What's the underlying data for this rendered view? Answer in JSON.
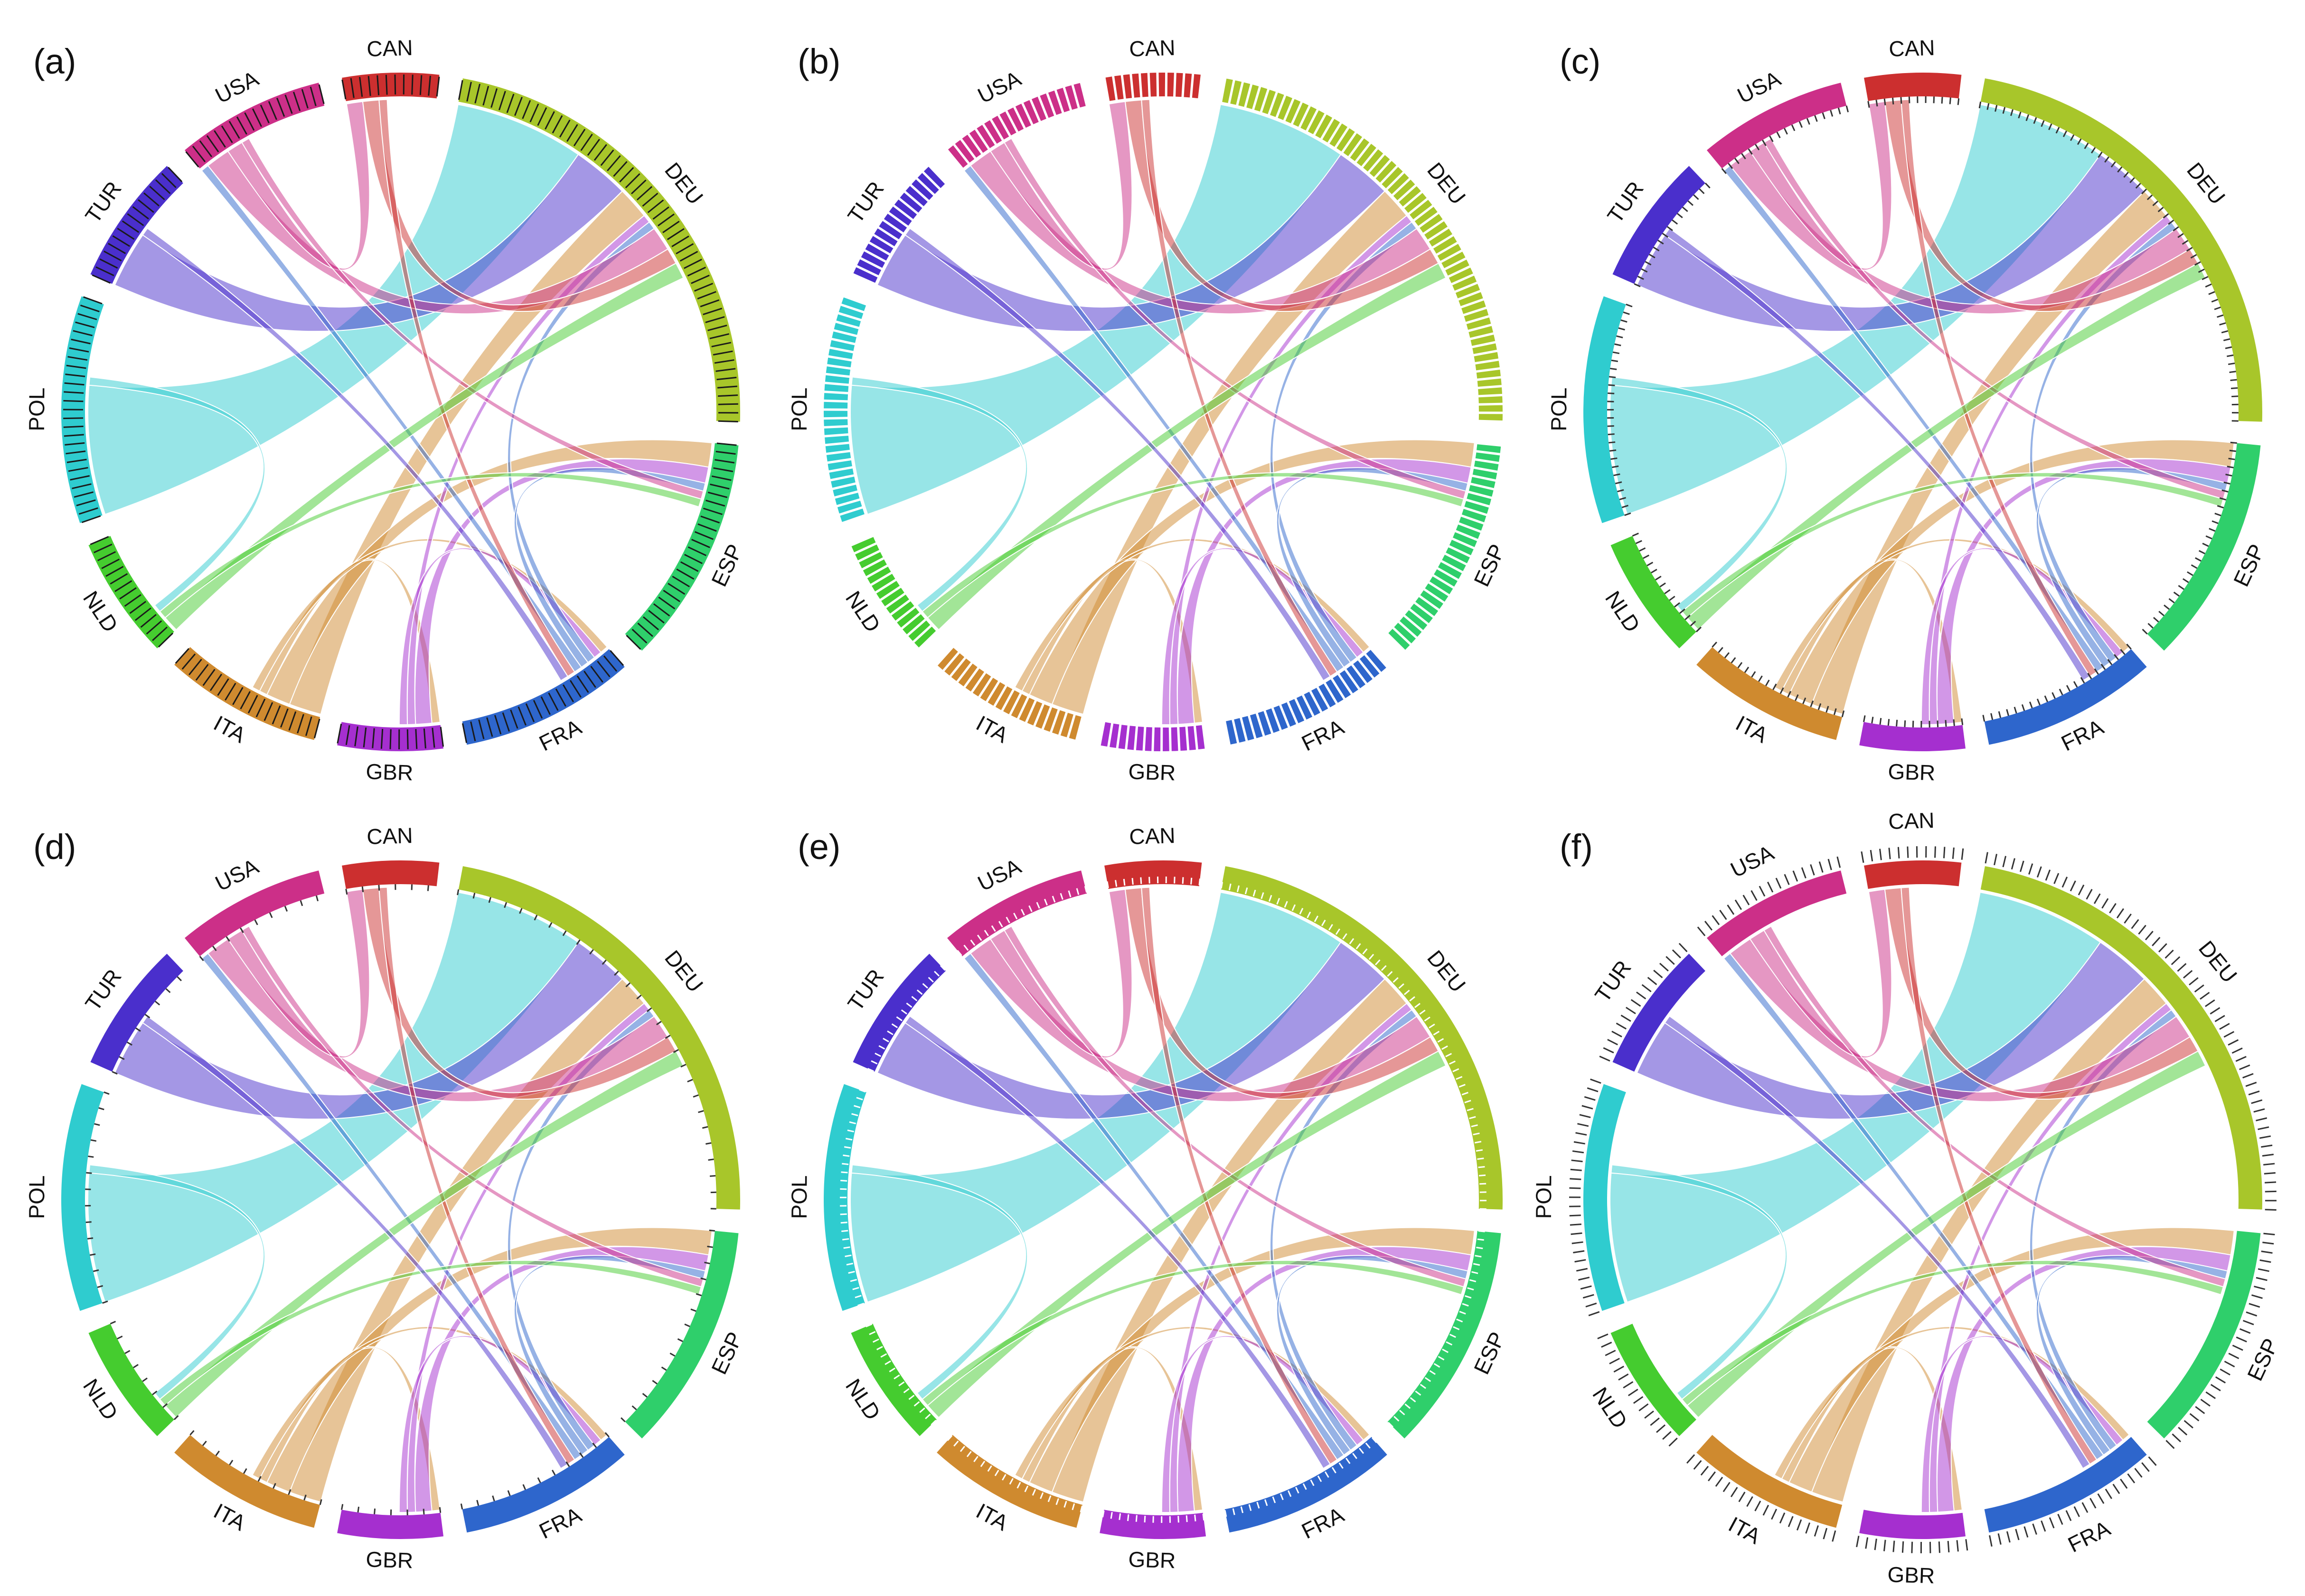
{
  "chart_data": {
    "type": "chord",
    "countries": [
      {
        "code": "CAN",
        "color": "#cc2f2f",
        "total": 11
      },
      {
        "code": "DEU",
        "color": "#a8c62a",
        "total": 54
      },
      {
        "code": "ESP",
        "color": "#2fcf6b",
        "total": 26
      },
      {
        "code": "FRA",
        "color": "#2e66cc",
        "total": 20
      },
      {
        "code": "GBR",
        "color": "#a52fcf",
        "total": 12
      },
      {
        "code": "ITA",
        "color": "#cf8a2f",
        "total": 18
      },
      {
        "code": "NLD",
        "color": "#45cc2f",
        "total": 14
      },
      {
        "code": "POL",
        "color": "#2fcccf",
        "total": 26
      },
      {
        "code": "TUR",
        "color": "#4a2fcc",
        "total": 15
      },
      {
        "code": "USA",
        "color": "#cc2f88",
        "total": 17
      }
    ],
    "flows": [
      {
        "from": "POL",
        "to": "DEU",
        "value": 16
      },
      {
        "from": "TUR",
        "to": "DEU",
        "value": 7
      },
      {
        "from": "ITA",
        "to": "DEU",
        "value": 4
      },
      {
        "from": "ITA",
        "to": "ESP",
        "value": 3
      },
      {
        "from": "ITA",
        "to": "GBR",
        "value": 1
      },
      {
        "from": "ITA",
        "to": "FRA",
        "value": 1
      },
      {
        "from": "GBR",
        "to": "ESP",
        "value": 2
      },
      {
        "from": "GBR",
        "to": "DEU",
        "value": 1
      },
      {
        "from": "GBR",
        "to": "FRA",
        "value": 1
      },
      {
        "from": "FRA",
        "to": "DEU",
        "value": 1
      },
      {
        "from": "FRA",
        "to": "ESP",
        "value": 1
      },
      {
        "from": "FRA",
        "to": "USA",
        "value": 1
      },
      {
        "from": "USA",
        "to": "DEU",
        "value": 3
      },
      {
        "from": "USA",
        "to": "CAN",
        "value": 2
      },
      {
        "from": "USA",
        "to": "ESP",
        "value": 1
      },
      {
        "from": "CAN",
        "to": "DEU",
        "value": 2
      },
      {
        "from": "CAN",
        "to": "FRA",
        "value": 1
      },
      {
        "from": "NLD",
        "to": "DEU",
        "value": 2
      },
      {
        "from": "NLD",
        "to": "ESP",
        "value": 1
      },
      {
        "from": "POL",
        "to": "NLD",
        "value": 1
      },
      {
        "from": "TUR",
        "to": "FRA",
        "value": 1
      }
    ],
    "panels": [
      {
        "label": "(a)",
        "tick_style": "inner-bars"
      },
      {
        "label": "(b)",
        "tick_style": "segmented"
      },
      {
        "label": "(c)",
        "tick_style": "inner-ticks"
      },
      {
        "label": "(d)",
        "tick_style": "inner-ticks-sparse"
      },
      {
        "label": "(e)",
        "tick_style": "inner-ticks-light"
      },
      {
        "label": "(f)",
        "tick_style": "outer-ticks"
      }
    ],
    "title": "",
    "legend": "none"
  }
}
